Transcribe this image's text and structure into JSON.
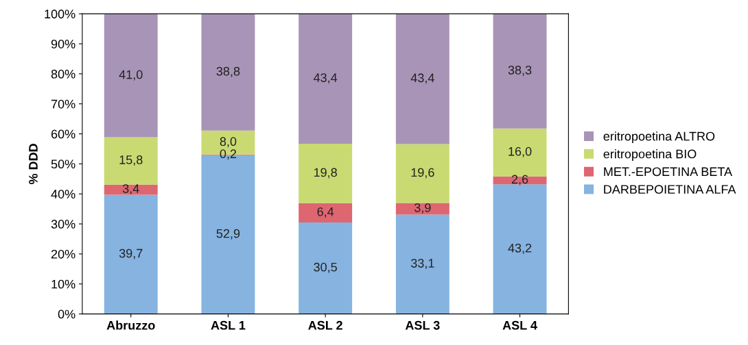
{
  "chart_data": {
    "type": "bar",
    "stacked": true,
    "ylabel": "% DDD",
    "categories": [
      "Abruzzo",
      "ASL 1",
      "ASL 2",
      "ASL 3",
      "ASL 4"
    ],
    "series": [
      {
        "name": "DARBEPOIETINA ALFA",
        "color": "#86b3e0",
        "values": [
          39.7,
          52.9,
          30.5,
          33.1,
          43.2
        ],
        "value_labels": [
          "39,7",
          "52,9",
          "30,5",
          "33,1",
          "43,2"
        ]
      },
      {
        "name": "MET.-EPOETINA BETA",
        "color": "#de6671",
        "values": [
          3.4,
          0.2,
          6.4,
          3.9,
          2.6
        ],
        "value_labels": [
          "3,4",
          "0,2",
          "6,4",
          "3,9",
          "2,6"
        ]
      },
      {
        "name": "eritropoetina BIO",
        "color": "#c9da72",
        "values": [
          15.8,
          8.0,
          19.8,
          19.6,
          16.0
        ],
        "value_labels": [
          "15,8",
          "8,0",
          "19,8",
          "19,6",
          "16,0"
        ]
      },
      {
        "name": "eritropoetina ALTRO",
        "color": "#a894b6",
        "values": [
          41.0,
          38.8,
          43.4,
          43.4,
          38.3
        ],
        "value_labels": [
          "41,0",
          "38,8",
          "43,4",
          "43,4",
          "38,3"
        ]
      }
    ],
    "ylim": [
      0,
      100
    ],
    "yticks": [
      {
        "value": 0,
        "label": "0%"
      },
      {
        "value": 10,
        "label": "10%"
      },
      {
        "value": 20,
        "label": "20%"
      },
      {
        "value": 30,
        "label": "30%"
      },
      {
        "value": 40,
        "label": "40%"
      },
      {
        "value": 50,
        "label": "50%"
      },
      {
        "value": 60,
        "label": "60%"
      },
      {
        "value": 70,
        "label": "70%"
      },
      {
        "value": 80,
        "label": "80%"
      },
      {
        "value": 90,
        "label": "90%"
      },
      {
        "value": 100,
        "label": "100%"
      }
    ],
    "legend": "right"
  }
}
